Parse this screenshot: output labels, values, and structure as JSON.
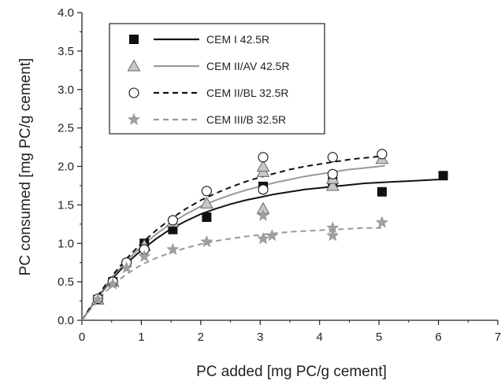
{
  "chart_data": {
    "type": "scatter",
    "xlabel": "PC added [mg PC/g cement]",
    "ylabel": "PC consumed [mg PC/g cement]",
    "xlim": [
      0,
      7
    ],
    "ylim": [
      0,
      4.0
    ],
    "x_ticks": [
      0,
      1,
      2,
      3,
      4,
      5,
      6,
      7
    ],
    "y_ticks": [
      0.0,
      0.5,
      1.0,
      1.5,
      2.0,
      2.5,
      3.0,
      3.5,
      4.0
    ],
    "x_tick_labels": [
      "0",
      "1",
      "2",
      "3",
      "4",
      "5",
      "6",
      "7"
    ],
    "y_tick_labels": [
      "0.0",
      "0.5",
      "1.0",
      "1.5",
      "2.0",
      "2.5",
      "3.0",
      "3.5",
      "4.0"
    ],
    "grid": false,
    "legend_position": "top-left",
    "series": [
      {
        "name": "CEM I 42.5R",
        "marker": "square",
        "line_style": "solid",
        "color": "#111111",
        "points": [
          [
            0.27,
            0.27
          ],
          [
            0.52,
            0.5
          ],
          [
            1.05,
            1.0
          ],
          [
            1.53,
            1.18
          ],
          [
            2.1,
            1.34
          ],
          [
            3.05,
            1.74
          ],
          [
            4.22,
            1.8
          ],
          [
            5.05,
            1.67
          ],
          [
            6.08,
            1.88
          ]
        ],
        "fit_x": [
          0,
          0.25,
          0.5,
          0.75,
          1,
          1.25,
          1.5,
          1.75,
          2,
          2.25,
          2.5,
          2.75,
          3,
          3.25,
          3.5,
          3.75,
          4,
          4.25,
          4.5,
          4.75,
          5,
          5.25,
          5.5,
          5.75,
          6,
          6.1
        ],
        "fit_y": [
          0,
          0.28,
          0.53,
          0.74,
          0.91,
          1.06,
          1.19,
          1.29,
          1.38,
          1.45,
          1.51,
          1.56,
          1.6,
          1.64,
          1.67,
          1.7,
          1.72,
          1.74,
          1.76,
          1.78,
          1.79,
          1.8,
          1.81,
          1.82,
          1.83,
          1.84
        ]
      },
      {
        "name": "CEM II/AV 42.5R",
        "marker": "triangle",
        "line_style": "solid",
        "color": "#999999",
        "points": [
          [
            0.27,
            0.27
          ],
          [
            0.52,
            0.5
          ],
          [
            1.05,
            0.97
          ],
          [
            1.53,
            1.28
          ],
          [
            2.1,
            1.52
          ],
          [
            3.05,
            1.45
          ],
          [
            3.05,
            1.93
          ],
          [
            3.05,
            2.0
          ],
          [
            4.22,
            1.75
          ],
          [
            4.22,
            1.84
          ],
          [
            5.05,
            2.1
          ]
        ],
        "fit_x": [
          0,
          0.25,
          0.5,
          0.75,
          1,
          1.25,
          1.5,
          1.75,
          2,
          2.25,
          2.5,
          2.75,
          3,
          3.25,
          3.5,
          3.75,
          4,
          4.25,
          4.5,
          4.75,
          5,
          5.1
        ],
        "fit_y": [
          0,
          0.29,
          0.55,
          0.77,
          0.96,
          1.12,
          1.26,
          1.38,
          1.48,
          1.56,
          1.63,
          1.69,
          1.74,
          1.79,
          1.83,
          1.87,
          1.9,
          1.93,
          1.96,
          1.98,
          2.0,
          2.01
        ]
      },
      {
        "name": "CEM II/BL 32.5R",
        "marker": "circle",
        "line_style": "dashed",
        "color": "#111111",
        "points": [
          [
            0.27,
            0.28
          ],
          [
            0.52,
            0.5
          ],
          [
            0.75,
            0.75
          ],
          [
            1.05,
            0.92
          ],
          [
            1.53,
            1.3
          ],
          [
            2.1,
            1.68
          ],
          [
            3.05,
            1.7
          ],
          [
            3.05,
            2.12
          ],
          [
            4.22,
            1.9
          ],
          [
            4.22,
            2.12
          ],
          [
            5.05,
            2.16
          ]
        ],
        "fit_x": [
          0,
          0.25,
          0.5,
          0.75,
          1,
          1.25,
          1.5,
          1.75,
          2,
          2.25,
          2.5,
          2.75,
          3,
          3.25,
          3.5,
          3.75,
          4,
          4.25,
          4.5,
          4.75,
          5,
          5.1
        ],
        "fit_y": [
          0,
          0.3,
          0.57,
          0.8,
          1.0,
          1.17,
          1.32,
          1.45,
          1.56,
          1.65,
          1.73,
          1.8,
          1.86,
          1.91,
          1.96,
          2.0,
          2.03,
          2.06,
          2.09,
          2.11,
          2.13,
          2.14
        ]
      },
      {
        "name": "CEM III/B 32.5R",
        "marker": "star",
        "line_style": "dashed",
        "color": "#999999",
        "points": [
          [
            0.27,
            0.27
          ],
          [
            0.52,
            0.47
          ],
          [
            0.75,
            0.68
          ],
          [
            1.05,
            0.83
          ],
          [
            1.53,
            0.92
          ],
          [
            2.1,
            1.02
          ],
          [
            3.05,
            1.06
          ],
          [
            3.05,
            1.36
          ],
          [
            3.2,
            1.1
          ],
          [
            4.22,
            1.1
          ],
          [
            4.22,
            1.2
          ],
          [
            5.05,
            1.27
          ]
        ],
        "fit_x": [
          0,
          0.25,
          0.5,
          0.75,
          1,
          1.25,
          1.5,
          1.75,
          2,
          2.25,
          2.5,
          2.75,
          3,
          3.25,
          3.5,
          3.75,
          4,
          4.25,
          4.5,
          4.75,
          5,
          5.1
        ],
        "fit_y": [
          0,
          0.25,
          0.45,
          0.6,
          0.72,
          0.81,
          0.88,
          0.94,
          0.99,
          1.03,
          1.06,
          1.09,
          1.11,
          1.13,
          1.15,
          1.16,
          1.17,
          1.18,
          1.19,
          1.2,
          1.2,
          1.21
        ]
      }
    ]
  }
}
